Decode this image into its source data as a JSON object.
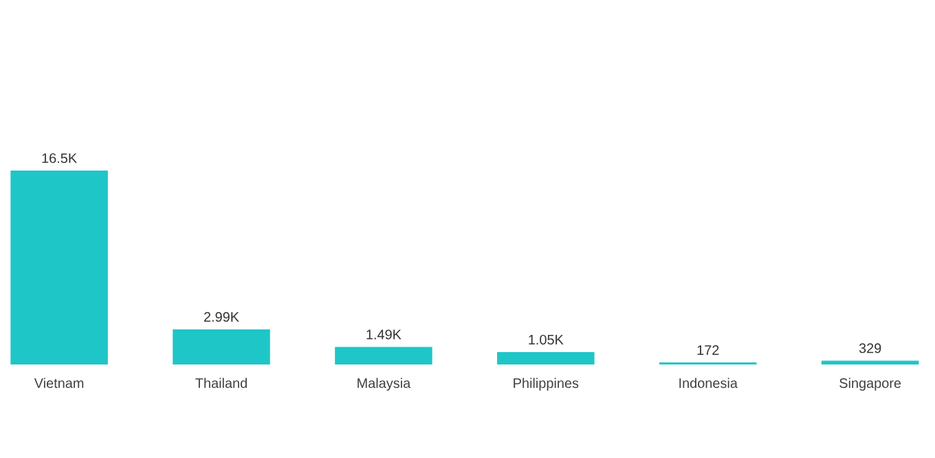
{
  "chart_data": {
    "type": "bar",
    "categories": [
      "Vietnam",
      "Thailand",
      "Malaysia",
      "Philippines",
      "Indonesia",
      "Singapore"
    ],
    "values": [
      16500,
      2990,
      1490,
      1050,
      172,
      329
    ],
    "value_labels": [
      "16.5K",
      "2.99K",
      "1.49K",
      "1.05K",
      "172",
      "329"
    ],
    "color": "#1fc6c8"
  }
}
